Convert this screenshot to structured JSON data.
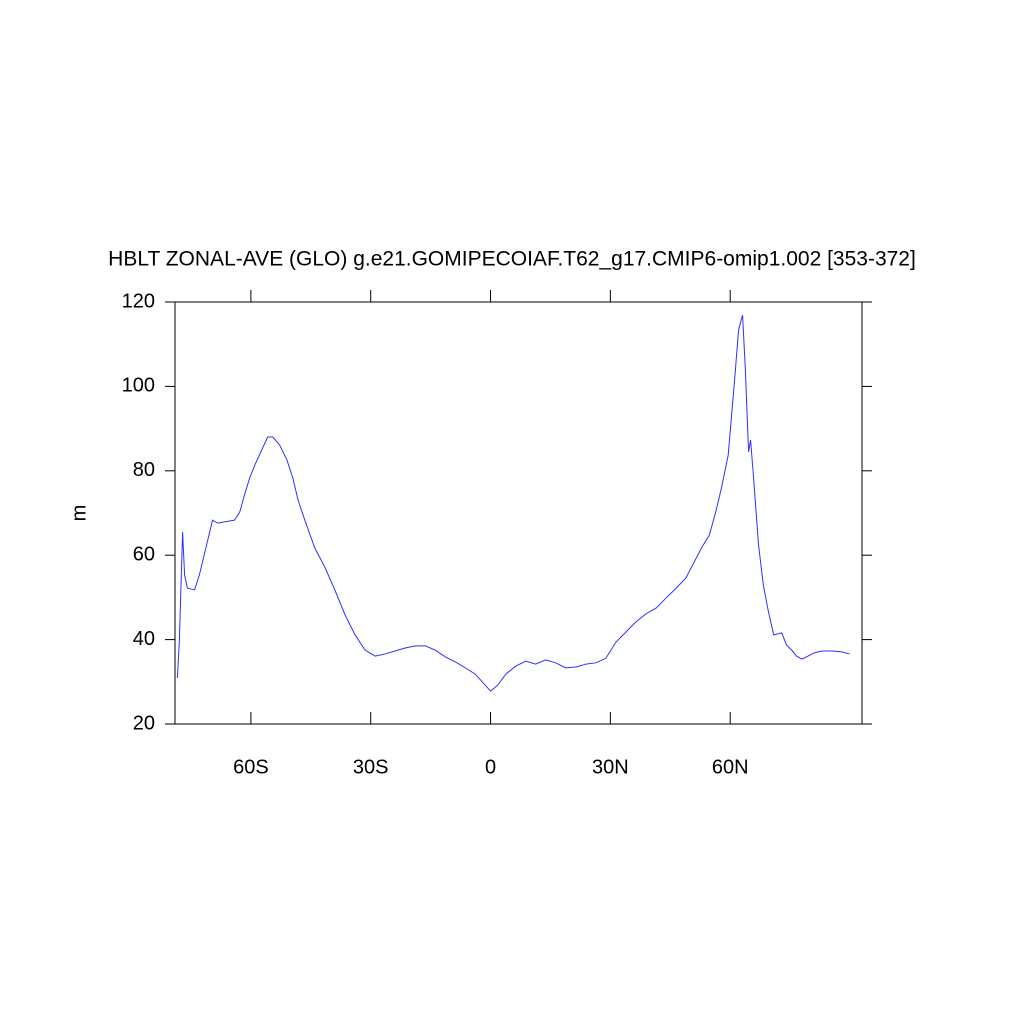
{
  "chart_data": {
    "type": "line",
    "title": "HBLT ZONAL-AVE (GLO) g.e21.GOMIPECOIAF.T62_g17.CMIP6-omip1.002 [353-372]",
    "y_label": "m",
    "xlim": [
      -79,
      93
    ],
    "ylim": [
      20,
      120
    ],
    "xticks": [
      {
        "value": -60,
        "label": "60S"
      },
      {
        "value": -30,
        "label": "30S"
      },
      0,
      {
        "value": 30,
        "label": "30N"
      },
      {
        "value": 60,
        "label": "60N"
      }
    ],
    "yticks": [
      20,
      40,
      60,
      80,
      100,
      120
    ],
    "series": [
      {
        "color": "#3030ff",
        "x": [
          -78.4,
          -77.9,
          -77.1,
          -76.6,
          -75.9,
          -74.1,
          -72.9,
          -71.1,
          -69.6,
          -68.3,
          -66.6,
          -64.1,
          -62.8,
          -61.6,
          -60.3,
          -59.0,
          -57.3,
          -55.8,
          -54.5,
          -52.8,
          -51.0,
          -49.5,
          -48.2,
          -46.5,
          -44.0,
          -41.5,
          -39.0,
          -36.4,
          -33.9,
          -31.4,
          -28.9,
          -26.4,
          -23.9,
          -21.4,
          -18.8,
          -16.3,
          -13.8,
          -11.3,
          -8.8,
          -6.3,
          -3.8,
          -1.8,
          0,
          1.8,
          3.8,
          6.3,
          8.8,
          11.3,
          13.8,
          16.3,
          18.8,
          21.4,
          23.9,
          26.4,
          28.9,
          31.4,
          33.9,
          36.4,
          38.9,
          41.5,
          44.0,
          46.5,
          48.9,
          51.0,
          52.8,
          54.8,
          56.5,
          57.8,
          59.5,
          61.1,
          62.1,
          63.1,
          63.8,
          64.6,
          65.1,
          65.8,
          67.1,
          68.3,
          69.6,
          70.9,
          72.9,
          74.1,
          75.4,
          76.6,
          77.9,
          79.1,
          80.9,
          82.9,
          85.4,
          87.9,
          89.9
        ],
        "values": [
          30.9,
          39.9,
          65.5,
          55.3,
          52.2,
          51.8,
          55.3,
          62.4,
          68.3,
          67.6,
          67.9,
          68.3,
          70.2,
          74.3,
          78.3,
          81.4,
          84.9,
          88.0,
          88.0,
          86.1,
          82.6,
          78.3,
          73.1,
          68.3,
          61.7,
          57.2,
          51.8,
          45.8,
          41.1,
          37.5,
          36.1,
          36.6,
          37.3,
          38.0,
          38.5,
          38.5,
          37.5,
          35.9,
          34.7,
          33.3,
          31.8,
          29.7,
          27.8,
          29.2,
          31.8,
          33.7,
          34.9,
          34.2,
          35.2,
          34.5,
          33.3,
          33.5,
          34.2,
          34.5,
          35.6,
          39.4,
          41.8,
          44.2,
          46.1,
          47.5,
          49.9,
          52.2,
          54.6,
          58.4,
          61.7,
          64.8,
          70.7,
          75.9,
          83.7,
          101.5,
          113.4,
          116.9,
          103.9,
          84.5,
          87.3,
          79.0,
          62.4,
          52.9,
          46.5,
          41.1,
          41.6,
          38.7,
          37.5,
          36.1,
          35.4,
          35.9,
          36.8,
          37.3,
          37.3,
          37.1,
          36.6
        ]
      }
    ]
  }
}
